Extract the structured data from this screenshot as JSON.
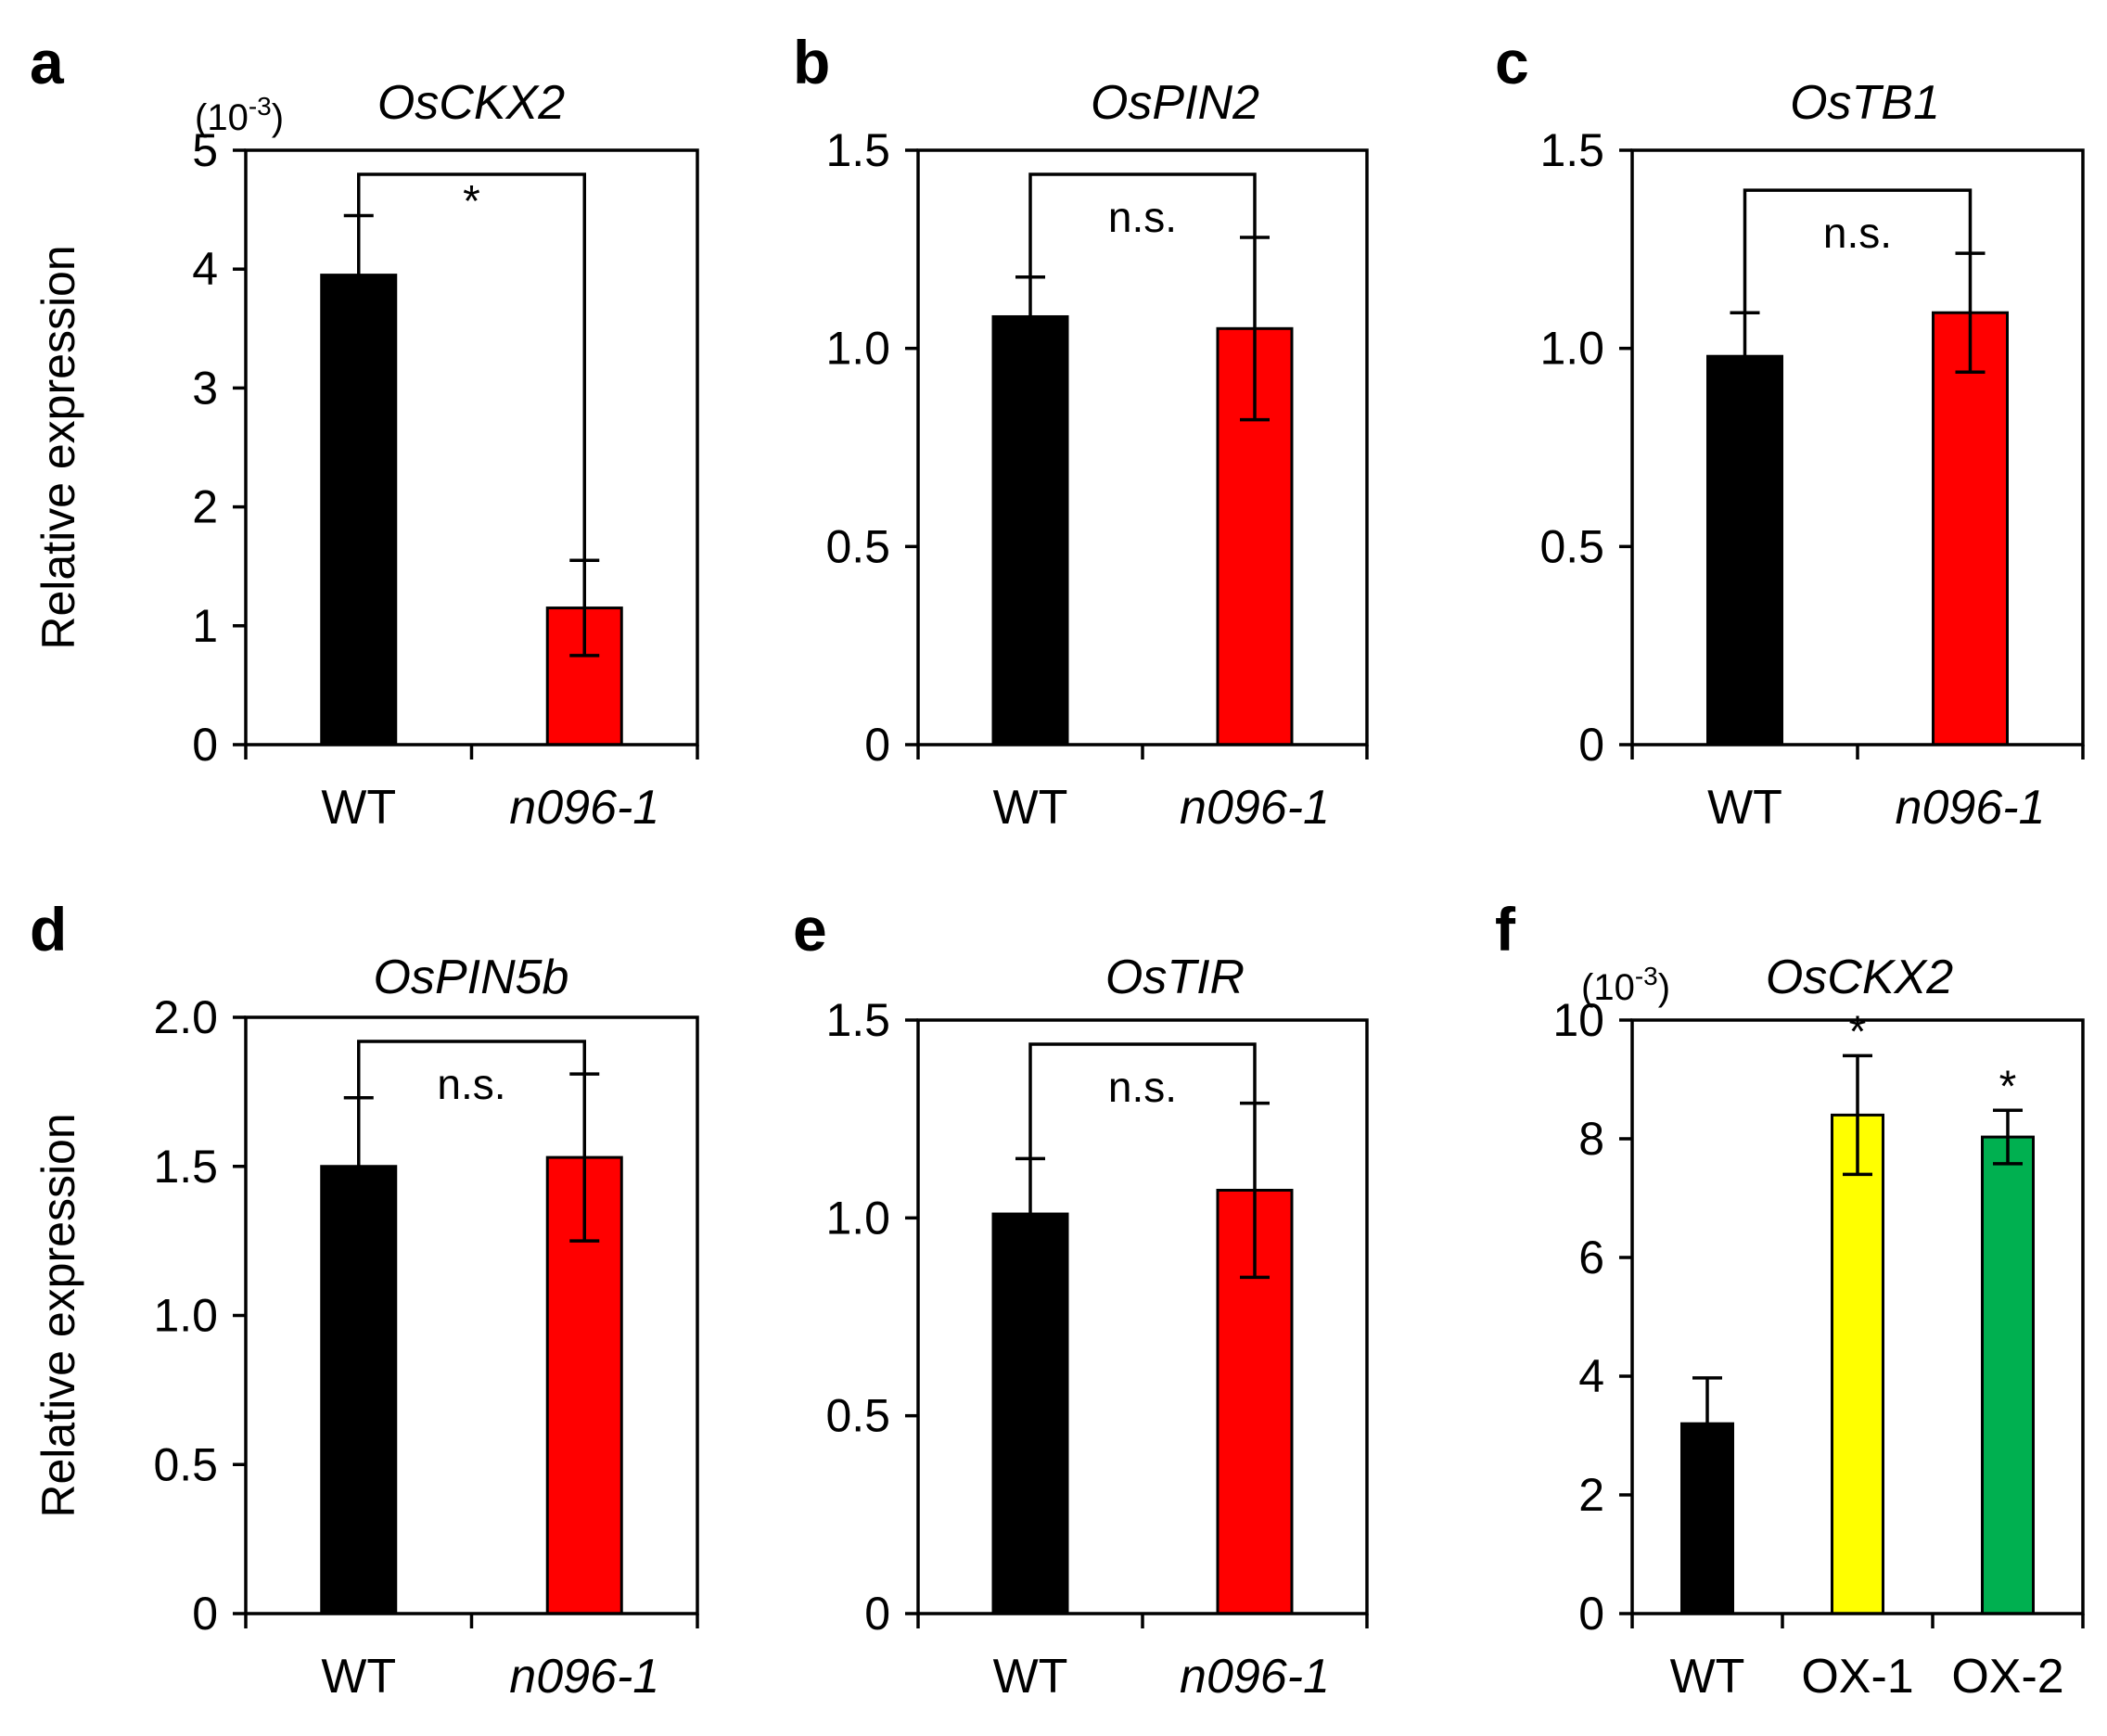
{
  "chart_data": [
    {
      "panel": "a",
      "type": "bar",
      "title": "OsCKX2",
      "ylabel": "Relative expression",
      "ylim": [
        0,
        5
      ],
      "yticks": [
        "0",
        "1",
        "2",
        "3",
        "4",
        "5"
      ],
      "multiplier_prefix": "(10",
      "multiplier_exp": "-3",
      "multiplier_suffix": ")",
      "categories": [
        "WT",
        "n096-1"
      ],
      "italic_categories": [
        false,
        true
      ],
      "values": [
        3.95,
        1.15
      ],
      "errors": [
        0.5,
        0.4
      ],
      "colors": [
        "#000000",
        "#ff0000"
      ],
      "comparison": {
        "from": 0,
        "to": 1,
        "label": "*"
      },
      "stars": [],
      "star_label": "*"
    },
    {
      "panel": "b",
      "type": "bar",
      "title": "OsPIN2",
      "ylabel": "",
      "ylim": [
        0,
        1.5
      ],
      "yticks": [
        "0",
        "0.5",
        "1.0",
        "1.5"
      ],
      "categories": [
        "WT",
        "n096-1"
      ],
      "italic_categories": [
        false,
        true
      ],
      "values": [
        1.08,
        1.05
      ],
      "errors": [
        0.1,
        0.23
      ],
      "colors": [
        "#000000",
        "#ff0000"
      ],
      "comparison": {
        "from": 0,
        "to": 1,
        "label": "n.s."
      },
      "stars": [],
      "star_label": "*"
    },
    {
      "panel": "c",
      "type": "bar",
      "title": "OsTB1",
      "ylabel": "",
      "ylim": [
        0,
        1.5
      ],
      "yticks": [
        "0",
        "0.5",
        "1.0",
        "1.5"
      ],
      "categories": [
        "WT",
        "n096-1"
      ],
      "italic_categories": [
        false,
        true
      ],
      "values": [
        0.98,
        1.09
      ],
      "errors": [
        0.11,
        0.15
      ],
      "colors": [
        "#000000",
        "#ff0000"
      ],
      "comparison": {
        "from": 0,
        "to": 1,
        "label": "n.s."
      },
      "stars": [],
      "star_label": "*"
    },
    {
      "panel": "d",
      "type": "bar",
      "title": "OsPIN5b",
      "ylabel": "Relative expression",
      "ylim": [
        0,
        2.0
      ],
      "yticks": [
        "0",
        "0.5",
        "1.0",
        "1.5",
        "2.0"
      ],
      "categories": [
        "WT",
        "n096-1"
      ],
      "italic_categories": [
        false,
        true
      ],
      "values": [
        1.5,
        1.53
      ],
      "errors": [
        0.23,
        0.28
      ],
      "colors": [
        "#000000",
        "#ff0000"
      ],
      "comparison": {
        "from": 0,
        "to": 1,
        "label": "n.s."
      },
      "stars": [],
      "star_label": "*"
    },
    {
      "panel": "e",
      "type": "bar",
      "title": "OsTIR",
      "ylabel": "",
      "ylim": [
        0,
        1.5
      ],
      "yticks": [
        "0",
        "0.5",
        "1.0",
        "1.5"
      ],
      "categories": [
        "WT",
        "n096-1"
      ],
      "italic_categories": [
        false,
        true
      ],
      "values": [
        1.01,
        1.07
      ],
      "errors": [
        0.14,
        0.22
      ],
      "colors": [
        "#000000",
        "#ff0000"
      ],
      "comparison": {
        "from": 0,
        "to": 1,
        "label": "n.s."
      },
      "stars": [],
      "star_label": "*"
    },
    {
      "panel": "f",
      "type": "bar",
      "title": "OsCKX2",
      "ylabel": "",
      "ylim": [
        0,
        10
      ],
      "yticks": [
        "0",
        "2",
        "4",
        "6",
        "8",
        "10"
      ],
      "multiplier_prefix": "(10",
      "multiplier_exp": "-3",
      "multiplier_suffix": ")",
      "categories": [
        "WT",
        "OX-1",
        "OX-2"
      ],
      "italic_categories": [
        false,
        false,
        false
      ],
      "values": [
        3.2,
        8.4,
        8.03
      ],
      "errors": [
        0.77,
        1.0,
        0.45
      ],
      "colors": [
        "#000000",
        "#ffff00",
        "#00b050"
      ],
      "comparison": null,
      "stars": [
        1,
        2
      ],
      "star_label": "*"
    }
  ]
}
